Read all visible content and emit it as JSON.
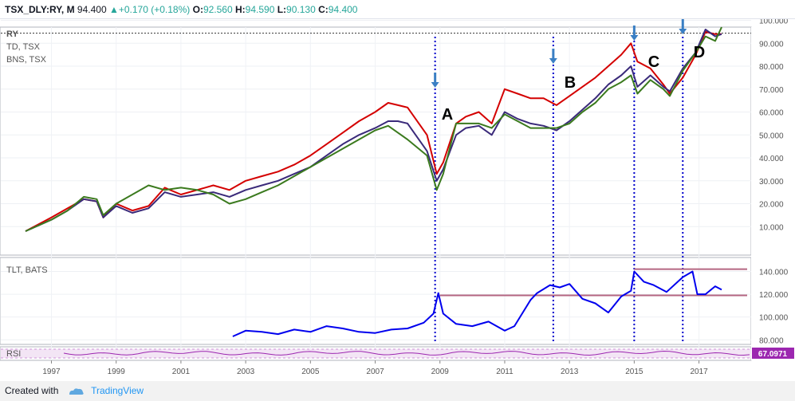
{
  "header": {
    "symbol": "TSX_DLY:RY, M",
    "last": "94.400",
    "change": "+0.170 (+0.18%)",
    "open_label": "O:",
    "open": "92.560",
    "high_label": "H:",
    "high": "94.590",
    "low_label": "L:",
    "low": "90.130",
    "close_label": "C:",
    "close": "94.400"
  },
  "footer": {
    "created_with": "Created with",
    "brand": "TradingView"
  },
  "colors": {
    "red": "#d40000",
    "navy": "#3a2a7a",
    "green": "#3b7a1e",
    "blue": "#0000ee",
    "rsi": "#9c27b0",
    "hline": "#b46682",
    "marker": "#0000cc",
    "arrow": "#3a7fc4"
  },
  "chart_data": [
    {
      "type": "line",
      "legend": [
        "RY",
        "TD, TSX",
        "BNS, TSX"
      ],
      "xlim": [
        1996.0,
        2017.9
      ],
      "ylim": [
        0,
        105
      ],
      "y_ticks": [
        "10.000",
        "20.000",
        "30.000",
        "40.000",
        "50.000",
        "60.000",
        "70.000",
        "80.000",
        "90.000",
        "100.000"
      ],
      "series": [
        {
          "name": "RY",
          "color": "#d40000",
          "x": [
            1996.2,
            1997.0,
            1997.5,
            1998.0,
            1998.4,
            1998.6,
            1999.0,
            1999.5,
            2000.0,
            2000.5,
            2001.0,
            2001.5,
            2002.0,
            2002.5,
            2003.0,
            2003.5,
            2004.0,
            2004.5,
            2005.0,
            2005.5,
            2006.0,
            2006.5,
            2007.0,
            2007.4,
            2007.7,
            2008.0,
            2008.6,
            2008.9,
            2009.1,
            2009.5,
            2009.8,
            2010.2,
            2010.6,
            2011.0,
            2011.4,
            2011.8,
            2012.2,
            2012.6,
            2013.0,
            2013.4,
            2013.8,
            2014.2,
            2014.6,
            2014.9,
            2015.1,
            2015.5,
            2015.9,
            2016.1,
            2016.5,
            2016.9,
            2017.2,
            2017.5,
            2017.7
          ],
          "y": [
            8,
            14,
            18,
            22,
            21,
            14,
            20,
            17,
            19,
            27,
            24,
            26,
            28,
            26,
            30,
            32,
            34,
            37,
            41,
            46,
            51,
            56,
            60,
            64,
            63,
            62,
            50,
            33,
            38,
            55,
            58,
            60,
            55,
            70,
            68,
            66,
            66,
            63,
            67,
            71,
            75,
            80,
            85,
            90,
            82,
            79,
            72,
            68,
            75,
            85,
            95,
            94,
            94
          ]
        },
        {
          "name": "TD, TSX",
          "color": "#3a2a7a",
          "x": [
            1996.2,
            1997.0,
            1997.5,
            1998.0,
            1998.4,
            1998.6,
            1999.0,
            1999.5,
            2000.0,
            2000.5,
            2001.0,
            2001.5,
            2002.0,
            2002.5,
            2003.0,
            2003.5,
            2004.0,
            2004.5,
            2005.0,
            2005.5,
            2006.0,
            2006.5,
            2007.0,
            2007.4,
            2007.7,
            2008.0,
            2008.6,
            2008.9,
            2009.1,
            2009.5,
            2009.8,
            2010.2,
            2010.6,
            2011.0,
            2011.4,
            2011.8,
            2012.2,
            2012.6,
            2013.0,
            2013.4,
            2013.8,
            2014.2,
            2014.6,
            2014.9,
            2015.1,
            2015.5,
            2015.9,
            2016.1,
            2016.5,
            2016.9,
            2017.2,
            2017.5,
            2017.7
          ],
          "y": [
            8,
            13,
            17,
            22,
            21,
            14,
            19,
            16,
            18,
            25,
            23,
            24,
            25,
            23,
            26,
            28,
            30,
            33,
            36,
            41,
            46,
            50,
            53,
            56,
            56,
            55,
            43,
            30,
            35,
            50,
            53,
            54,
            50,
            60,
            57,
            55,
            54,
            52,
            56,
            61,
            66,
            72,
            76,
            80,
            71,
            76,
            71,
            69,
            79,
            86,
            96,
            93,
            94
          ]
        },
        {
          "name": "BNS, TSX",
          "color": "#3b7a1e",
          "x": [
            1996.2,
            1997.0,
            1997.5,
            1998.0,
            1998.4,
            1998.6,
            1999.0,
            1999.5,
            2000.0,
            2000.5,
            2001.0,
            2001.5,
            2002.0,
            2002.5,
            2003.0,
            2003.5,
            2004.0,
            2004.5,
            2005.0,
            2005.5,
            2006.0,
            2006.5,
            2007.0,
            2007.4,
            2007.7,
            2008.0,
            2008.6,
            2008.9,
            2009.1,
            2009.5,
            2009.8,
            2010.2,
            2010.6,
            2011.0,
            2011.4,
            2011.8,
            2012.2,
            2012.6,
            2013.0,
            2013.4,
            2013.8,
            2014.2,
            2014.6,
            2014.9,
            2015.1,
            2015.5,
            2015.9,
            2016.1,
            2016.5,
            2016.9,
            2017.2,
            2017.5,
            2017.7
          ],
          "y": [
            8,
            13,
            17,
            23,
            22,
            15,
            20,
            24,
            28,
            26,
            27,
            26,
            24,
            20,
            22,
            25,
            28,
            32,
            36,
            40,
            44,
            48,
            52,
            54,
            51,
            48,
            41,
            26,
            33,
            55,
            55,
            55,
            53,
            59,
            56,
            53,
            53,
            53,
            55,
            60,
            64,
            70,
            73,
            76,
            68,
            74,
            70,
            67,
            78,
            86,
            93,
            91,
            97
          ]
        }
      ]
    },
    {
      "type": "line",
      "legend": [
        "TLT, BATS"
      ],
      "xlim": [
        1996.0,
        2017.9
      ],
      "ylim": [
        76,
        146
      ],
      "y_ticks": [
        "80.000",
        "100.000",
        "120.000",
        "140.000"
      ],
      "horizontal_lines": [
        119,
        142
      ],
      "series": [
        {
          "name": "TLT, BATS",
          "color": "#0000ee",
          "x": [
            2002.6,
            2003.0,
            2003.5,
            2004.0,
            2004.5,
            2005.0,
            2005.5,
            2006.0,
            2006.5,
            2007.0,
            2007.5,
            2008.0,
            2008.5,
            2008.8,
            2008.95,
            2009.1,
            2009.5,
            2010.0,
            2010.5,
            2011.0,
            2011.3,
            2011.8,
            2012.0,
            2012.4,
            2012.7,
            2013.0,
            2013.4,
            2013.8,
            2014.2,
            2014.6,
            2014.9,
            2015.0,
            2015.3,
            2015.6,
            2016.0,
            2016.5,
            2016.8,
            2016.95,
            2017.2,
            2017.5,
            2017.7
          ],
          "y": [
            83,
            88,
            87,
            85,
            89,
            87,
            92,
            90,
            87,
            86,
            89,
            90,
            95,
            103,
            121,
            103,
            94,
            92,
            96,
            88,
            92,
            115,
            121,
            128,
            126,
            129,
            116,
            112,
            104,
            118,
            123,
            140,
            131,
            128,
            122,
            135,
            140,
            120,
            120,
            127,
            124
          ]
        }
      ]
    },
    {
      "type": "line",
      "legend": [
        "RSI"
      ],
      "last_value": "67.0971",
      "series": [
        {
          "name": "RSI",
          "color": "#9c27b0"
        }
      ]
    }
  ],
  "x_ticks": [
    "1997",
    "1999",
    "2001",
    "2003",
    "2005",
    "2007",
    "2009",
    "2011",
    "2013",
    "2015",
    "2017"
  ],
  "annotations": [
    {
      "label": "A",
      "x": 2008.85
    },
    {
      "label": "B",
      "x": 2012.5
    },
    {
      "label": "C",
      "x": 2015.0
    },
    {
      "label": "D",
      "x": 2016.5
    }
  ]
}
